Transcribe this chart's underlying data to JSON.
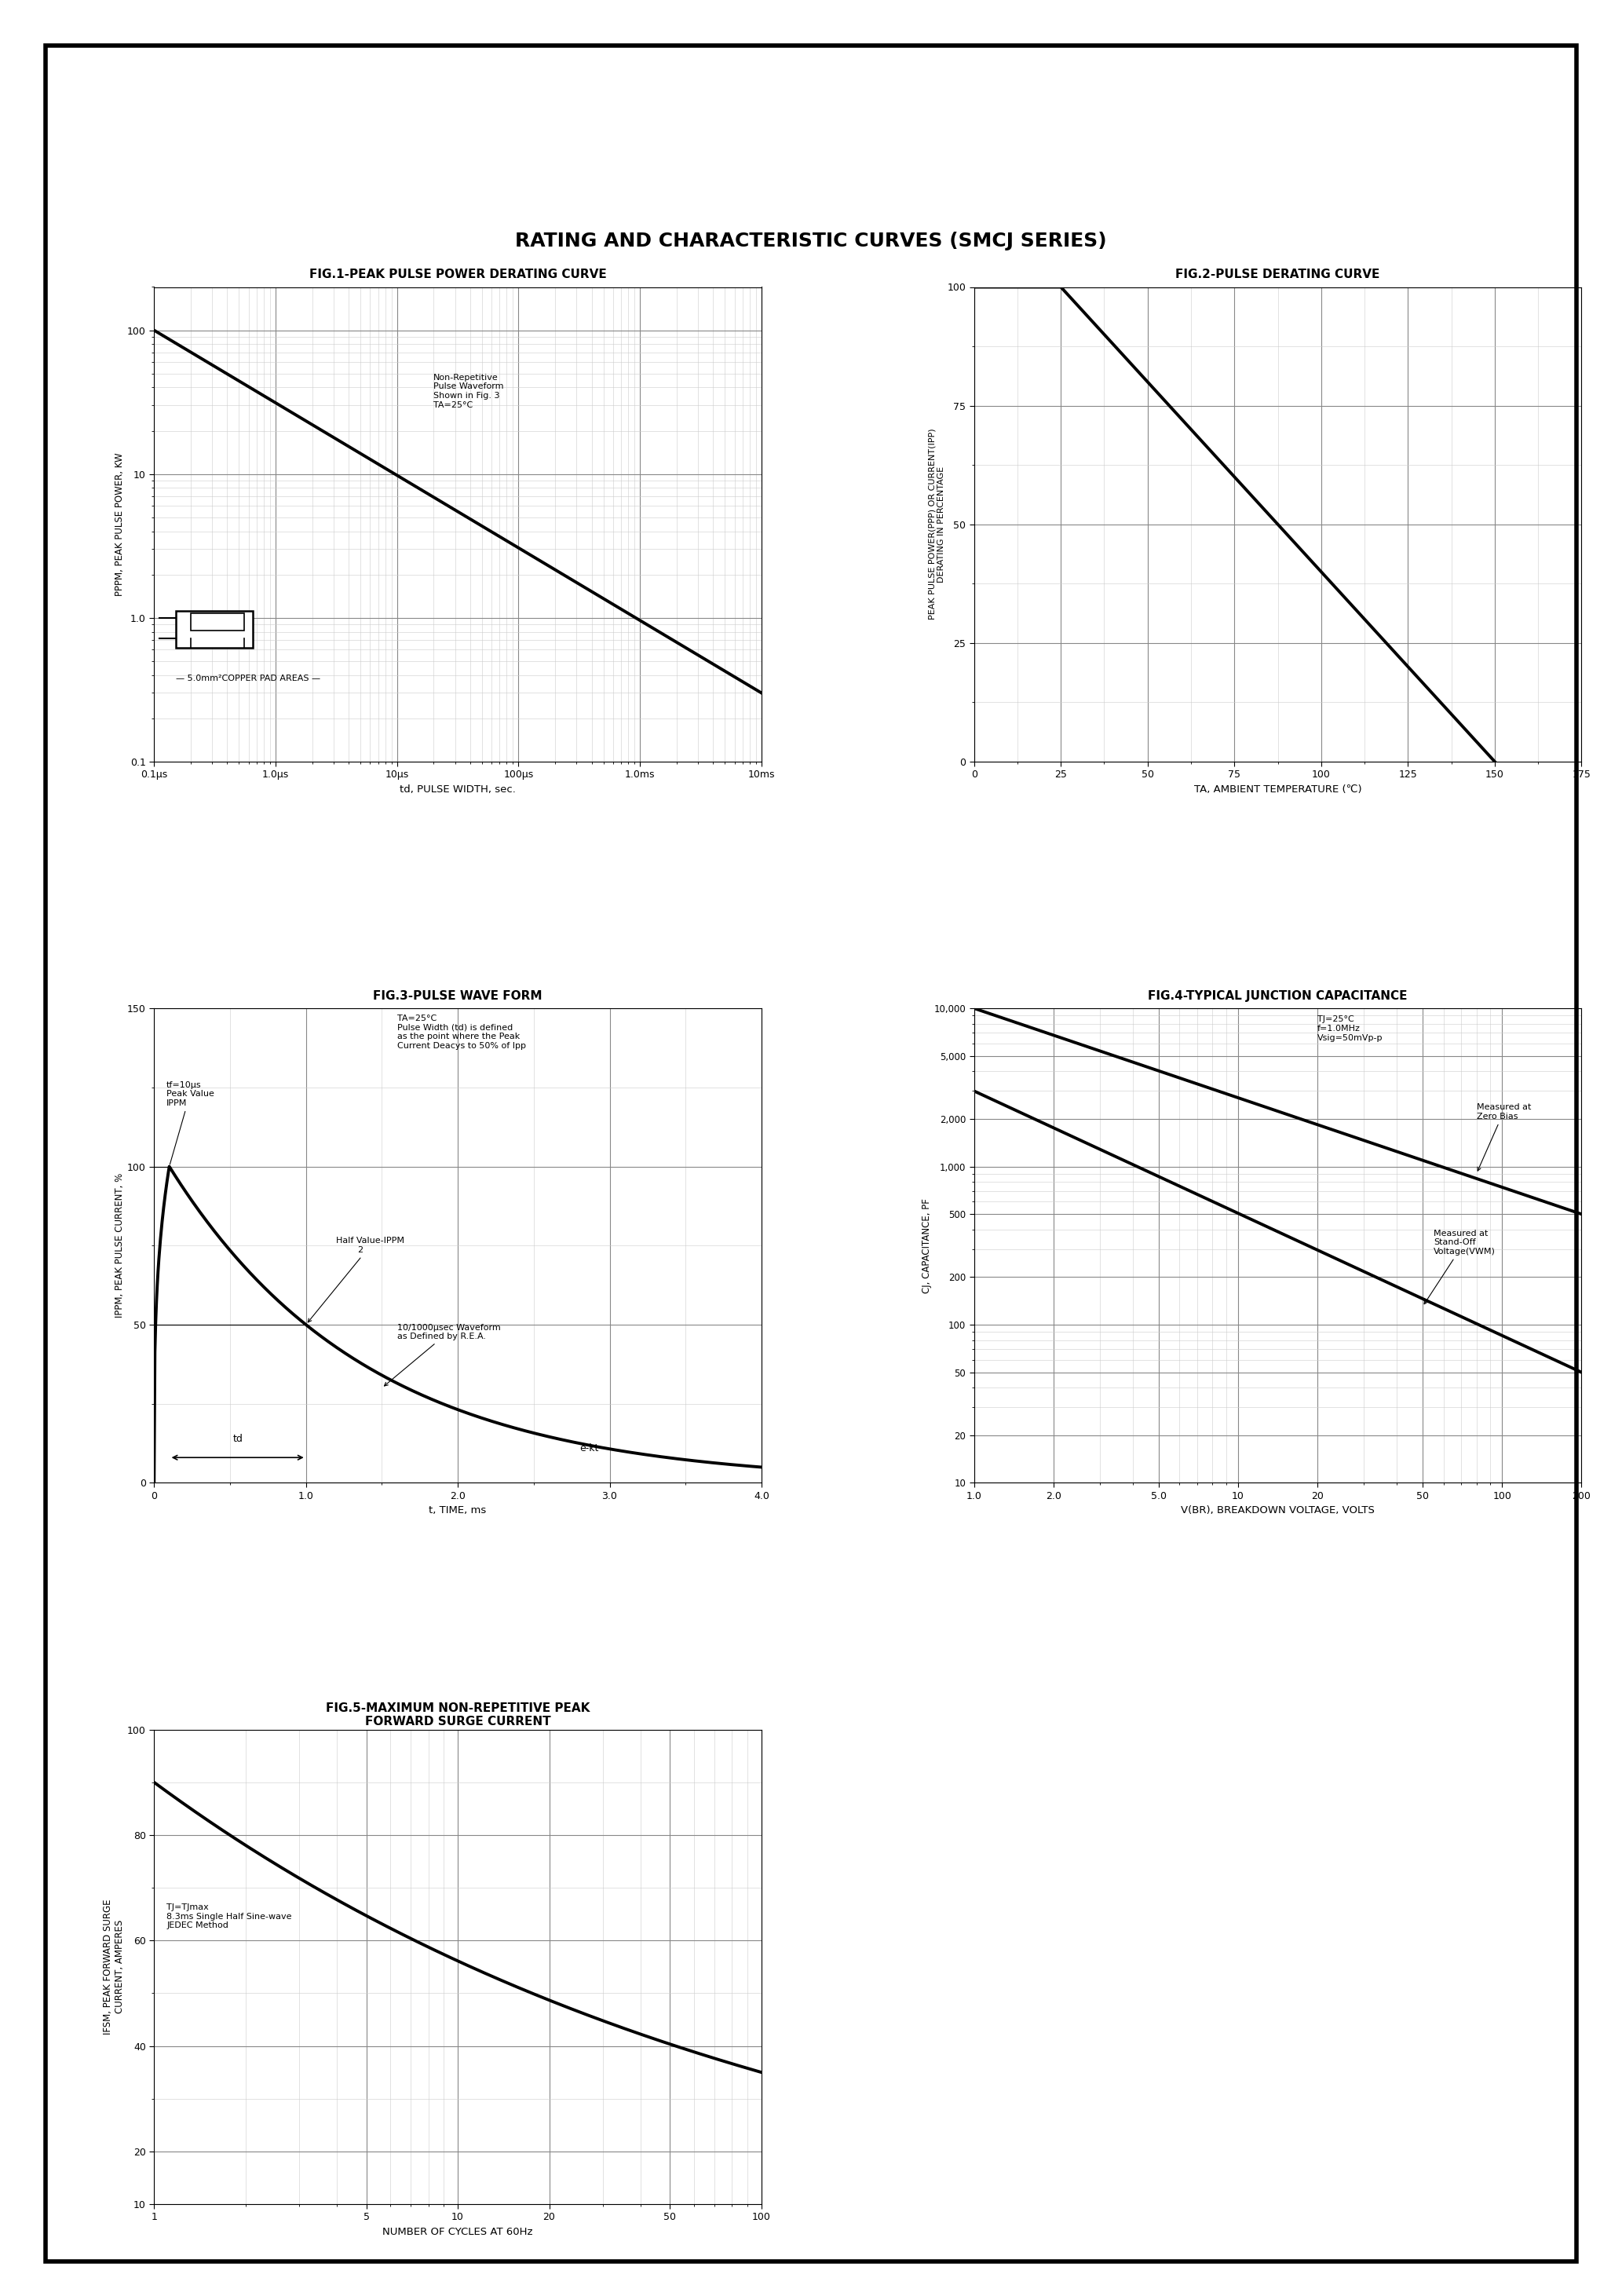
{
  "title": "RATING AND CHARACTERISTIC CURVES (SMCJ SERIES)",
  "fig1_title": "FIG.1-PEAK PULSE POWER DERATING CURVE",
  "fig2_title": "FIG.2-PULSE DERATING CURVE",
  "fig3_title": "FIG.3-PULSE WAVE FORM",
  "fig4_title": "FIG.4-TYPICAL JUNCTION CAPACITANCE",
  "fig5_title": "FIG.5-MAXIMUM NON-REPETITIVE PEAK\nFORWARD SURGE CURRENT",
  "fig1_note": "Non-Repetitive\nPulse Waveform\nShown in Fig. 3\nTA=25°C",
  "fig1_pad_label": "— 5.0mm²COPPER PAD AREAS —",
  "fig1_xlabel": "td, PULSE WIDTH, sec.",
  "fig1_ylabel": "PPPM, PEAK PULSE POWER, KW",
  "fig2_xlabel": "TA, AMBIENT TEMPERATURE (℃)",
  "fig2_ylabel": "PEAK PULSE POWER(PPP) OR CURRENT(IPP)\nDERATING IN PERCENTAGE",
  "fig3_xlabel": "t, TIME, ms",
  "fig3_ylabel": "IPPM, PEAK PULSE CURRENT, %",
  "fig4_xlabel": "V(BR), BREAKDOWN VOLTAGE, VOLTS",
  "fig4_ylabel": "CJ, CAPACITANCE, PF",
  "fig5_xlabel": "NUMBER OF CYCLES AT 60Hz",
  "fig5_ylabel": "IFSM, PEAK FORWARD SURGE\nCURRENT, AMPERES",
  "fig3_note1": "tf=10μs\nPeak Value\nIPPM",
  "fig3_note2": "TA=25°C\nPulse Width (td) is defined\nas the point where the Peak\nCurrent Deacys to 50% of Ipp",
  "fig3_waveform_label": "10/1000μsec Waveform\nas Defined by R.E.A.",
  "fig4_note1": "TJ=25°C\nf=1.0MHz\nVsig=50mVp-p",
  "fig4_note2": "Measured at\nZero Bias",
  "fig4_note3": "Measured at\nStand-Off\nVoltage(VWM)",
  "fig5_note": "TJ=TJmax\n8.3ms Single Half Sine-wave\nJEDEC Method",
  "background_color": "#ffffff",
  "border_color": "#000000",
  "line_color": "#000000",
  "grid_major_color": "#888888",
  "grid_minor_color": "#cccccc",
  "text_color": "#000000"
}
